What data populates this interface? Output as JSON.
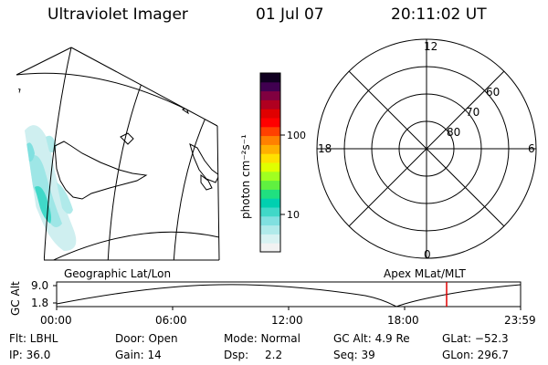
{
  "header": {
    "instrument": "Ultraviolet Imager",
    "date": "01 Jul 07",
    "time": "20:11:02 UT"
  },
  "colorbar": {
    "label": "photon cm⁻²s⁻¹",
    "ticks": [
      "100",
      "10"
    ],
    "colors": [
      "#f2f2f2",
      "#d8f2f2",
      "#b0eaea",
      "#80e0e0",
      "#40d8c8",
      "#00d0b0",
      "#20e080",
      "#60f040",
      "#a0ff20",
      "#e0ff00",
      "#ffe000",
      "#ffb000",
      "#ff8000",
      "#ff4000",
      "#ff0000",
      "#e00000",
      "#b00020",
      "#800040",
      "#400050",
      "#100020"
    ]
  },
  "polar_plot": {
    "mlt_labels": [
      "12",
      "18",
      "6",
      "0"
    ],
    "lat_labels": [
      "60",
      "70",
      "80"
    ]
  },
  "altitude_strip": {
    "ylabel": "GC Alt",
    "ymax": "9.0",
    "ymin": "1.8",
    "left_label": "Geographic Lat/Lon",
    "right_label": "Apex MLat/MLT",
    "x_ticks": [
      "00:00",
      "06:00",
      "12:00",
      "18:00",
      "23:59"
    ],
    "marker_color": "#e00000"
  },
  "footer": {
    "flt": "Flt: LBHL",
    "ip": "IP: 36.0",
    "door": "Door: Open",
    "gain": "Gain: 14",
    "mode": "Mode: Normal",
    "dsp_label": "Dsp:",
    "dsp_value": "2.2",
    "gc_alt": "GC Alt: 4.9 Re",
    "seq": "Seq: 39",
    "glat": "GLat: −52.3",
    "glon": "GLon: 296.7"
  }
}
